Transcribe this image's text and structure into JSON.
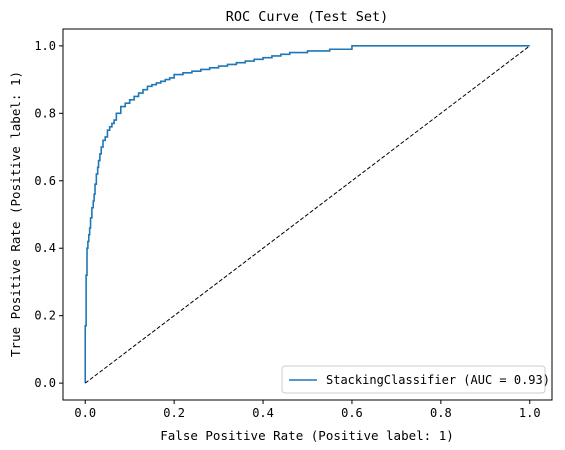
{
  "chart_data": {
    "type": "line",
    "title": "ROC Curve (Test Set)",
    "xlabel": "False Positive Rate (Positive label: 1)",
    "ylabel": "True Positive Rate (Positive label: 1)",
    "xlim": [
      -0.05,
      1.05
    ],
    "ylim": [
      -0.05,
      1.05
    ],
    "xticks": [
      0.0,
      0.2,
      0.4,
      0.6,
      0.8,
      1.0
    ],
    "yticks": [
      0.0,
      0.2,
      0.4,
      0.6,
      0.8,
      1.0
    ],
    "xtick_labels": [
      "0.0",
      "0.2",
      "0.4",
      "0.6",
      "0.8",
      "1.0"
    ],
    "ytick_labels": [
      "0.0",
      "0.2",
      "0.4",
      "0.6",
      "0.8",
      "1.0"
    ],
    "grid": false,
    "legend_position": "lower-right",
    "series": [
      {
        "name": "StackingClassifier (AUC = 0.93)",
        "color": "#1f77b4",
        "style": "solid",
        "x": [
          0.0,
          0.0,
          0.002,
          0.002,
          0.004,
          0.004,
          0.006,
          0.008,
          0.01,
          0.012,
          0.015,
          0.018,
          0.02,
          0.022,
          0.025,
          0.028,
          0.03,
          0.033,
          0.036,
          0.04,
          0.045,
          0.05,
          0.055,
          0.06,
          0.065,
          0.07,
          0.08,
          0.09,
          0.1,
          0.11,
          0.12,
          0.13,
          0.14,
          0.15,
          0.16,
          0.17,
          0.18,
          0.19,
          0.2,
          0.22,
          0.24,
          0.26,
          0.28,
          0.3,
          0.32,
          0.34,
          0.36,
          0.38,
          0.4,
          0.42,
          0.44,
          0.46,
          0.5,
          0.55,
          0.6,
          0.65,
          0.7,
          0.8,
          0.9,
          1.0
        ],
        "y": [
          0.0,
          0.16,
          0.17,
          0.31,
          0.32,
          0.37,
          0.4,
          0.42,
          0.44,
          0.46,
          0.49,
          0.52,
          0.54,
          0.56,
          0.59,
          0.62,
          0.64,
          0.66,
          0.68,
          0.7,
          0.72,
          0.73,
          0.75,
          0.76,
          0.77,
          0.78,
          0.8,
          0.82,
          0.83,
          0.84,
          0.85,
          0.86,
          0.87,
          0.88,
          0.885,
          0.89,
          0.895,
          0.9,
          0.905,
          0.915,
          0.92,
          0.925,
          0.93,
          0.935,
          0.94,
          0.945,
          0.95,
          0.955,
          0.96,
          0.965,
          0.97,
          0.975,
          0.98,
          0.985,
          0.99,
          1.0,
          1.0,
          1.0,
          1.0,
          1.0
        ]
      },
      {
        "name": "",
        "color": "#000000",
        "style": "dashed",
        "x": [
          0.0,
          1.0
        ],
        "y": [
          0.0,
          1.0
        ]
      }
    ]
  }
}
